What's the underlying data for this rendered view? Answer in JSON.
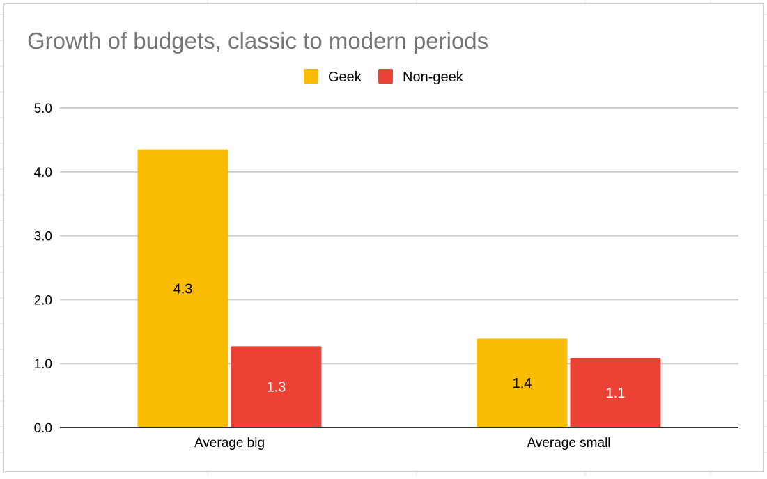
{
  "chart_data": {
    "type": "bar",
    "title": "Growth of budgets, classic to modern periods",
    "categories": [
      "Average big",
      "Average small"
    ],
    "series": [
      {
        "name": "Geek",
        "color": "#fbbc04",
        "values": [
          4.35,
          1.39
        ],
        "labels": [
          "4.3",
          "1.4"
        ],
        "label_color": "#000000"
      },
      {
        "name": "Non-geek",
        "color": "#ea4335",
        "values": [
          1.27,
          1.09
        ],
        "labels": [
          "1.3",
          "1.1"
        ],
        "label_color": "#ffffff"
      }
    ],
    "ylim": [
      0,
      5
    ],
    "yticks": [
      "0.0",
      "1.0",
      "2.0",
      "3.0",
      "4.0",
      "5.0"
    ],
    "xlabel": "",
    "ylabel": "",
    "legend_position": "top",
    "grid": true
  }
}
